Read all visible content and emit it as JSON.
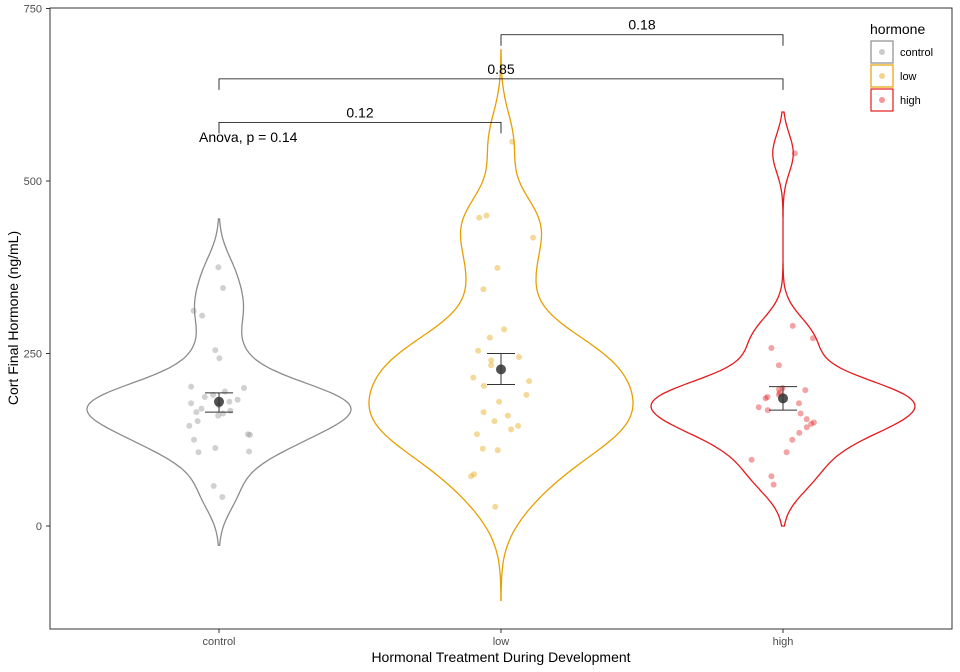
{
  "chart_data": {
    "type": "violin",
    "xlabel": "Hormonal Treatment During Development",
    "ylabel": "Cort Final Hormone (ng/mL)",
    "ylim": [
      -150,
      750
    ],
    "yticks": [
      0,
      250,
      500,
      750
    ],
    "categories": [
      "control",
      "low",
      "high"
    ],
    "annotation": "Anova, p = 0.14",
    "legend": {
      "title": "hormone",
      "placement": "top-right",
      "items": [
        {
          "label": "control",
          "color": "#8c8c8c"
        },
        {
          "label": "low",
          "color": "#e69f00"
        },
        {
          "label": "high",
          "color": "#e41a1c"
        }
      ]
    },
    "series": [
      {
        "name": "control",
        "color": "#8c8c8c",
        "mean": 180,
        "se_low": 165,
        "se_high": 193,
        "points": [
          375,
          345,
          312,
          305,
          255,
          243,
          202,
          200,
          195,
          190,
          187,
          183,
          180,
          178,
          175,
          170,
          167,
          165,
          163,
          160,
          152,
          145,
          133,
          132,
          125,
          113,
          108,
          107,
          58,
          42
        ],
        "violin": {
          "range": [
            -28,
            445
          ],
          "bw": 30
        }
      },
      {
        "name": "low",
        "color": "#e69f00",
        "mean": 227,
        "se_low": 205,
        "se_high": 250,
        "points": [
          557,
          450,
          447,
          418,
          374,
          343,
          285,
          273,
          254,
          245,
          240,
          233,
          215,
          210,
          203,
          190,
          180,
          165,
          160,
          152,
          145,
          140,
          133,
          112,
          110,
          75,
          72,
          28
        ],
        "violin": {
          "range": [
            -108,
            690
          ],
          "bw": 42
        }
      },
      {
        "name": "high",
        "color": "#e41a1c",
        "mean": 185,
        "se_low": 168,
        "se_high": 202,
        "points": [
          540,
          290,
          272,
          258,
          233,
          200,
          198,
          197,
          193,
          190,
          187,
          185,
          178,
          172,
          168,
          163,
          155,
          150,
          148,
          143,
          135,
          125,
          107,
          96,
          72,
          60
        ],
        "violin": {
          "range": [
            0,
            600
          ],
          "bw": 28
        }
      }
    ],
    "comparisons": [
      {
        "from": "control",
        "to": "low",
        "label": "0.12",
        "y": 585
      },
      {
        "from": "control",
        "to": "high",
        "label": "0.85",
        "y": 648
      },
      {
        "from": "low",
        "to": "high",
        "label": "0.18",
        "y": 712
      }
    ]
  }
}
